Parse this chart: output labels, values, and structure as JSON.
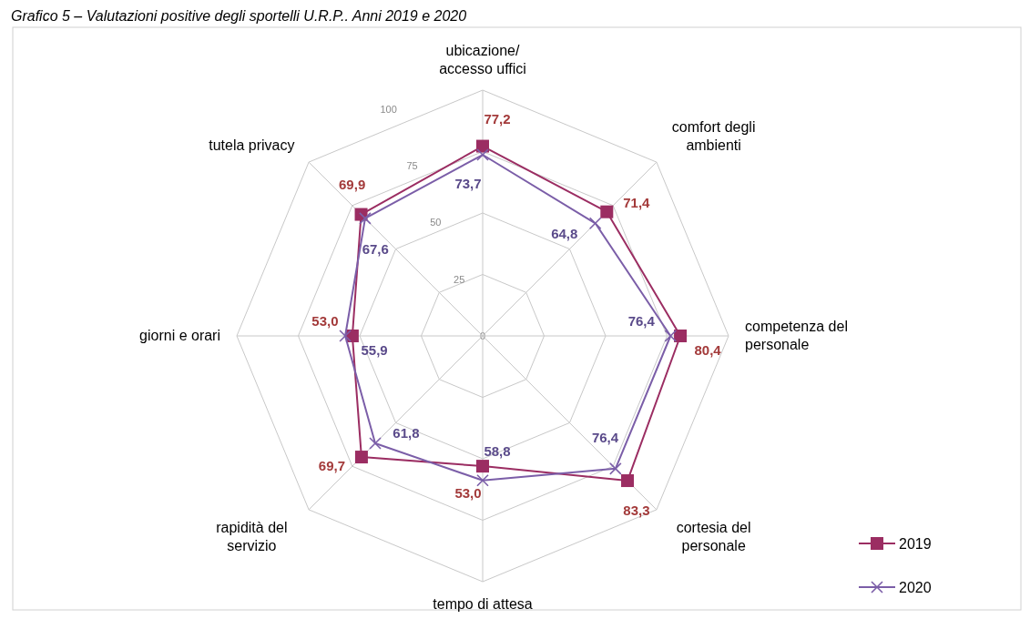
{
  "chart_data": {
    "type": "radar",
    "title": "Grafico 5 – Valutazioni positive degli sportelli U.R.P.. Anni 2019 e 2020",
    "categories": [
      "ubicazione/ accesso uffici",
      "comfort degli ambienti",
      "competenza del personale",
      "cortesia del personale",
      "tempo di attesa",
      "rapidità del servizio",
      "giorni e orari",
      "tutela privacy"
    ],
    "series": [
      {
        "name": "2019",
        "color": "#9b2d62",
        "marker": "square",
        "values": [
          77.2,
          71.4,
          80.4,
          83.3,
          53.0,
          69.7,
          53.0,
          69.9
        ],
        "value_labels": [
          "77,2",
          "71,4",
          "80,4",
          "83,3",
          "53,0",
          "69,7",
          "53,0",
          "69,9"
        ]
      },
      {
        "name": "2020",
        "color": "#7b5ea8",
        "marker": "cross",
        "values": [
          73.7,
          64.8,
          76.4,
          76.4,
          58.8,
          61.8,
          55.9,
          67.6
        ],
        "value_labels": [
          "73,7",
          "64,8",
          "76,4",
          "76,4",
          "58,8",
          "61,8",
          "55,9",
          "67,6"
        ]
      }
    ],
    "ylim": [
      0,
      100
    ],
    "yticks": [
      0,
      25,
      50,
      75,
      100
    ],
    "grid": true,
    "legend": "bottom right"
  }
}
